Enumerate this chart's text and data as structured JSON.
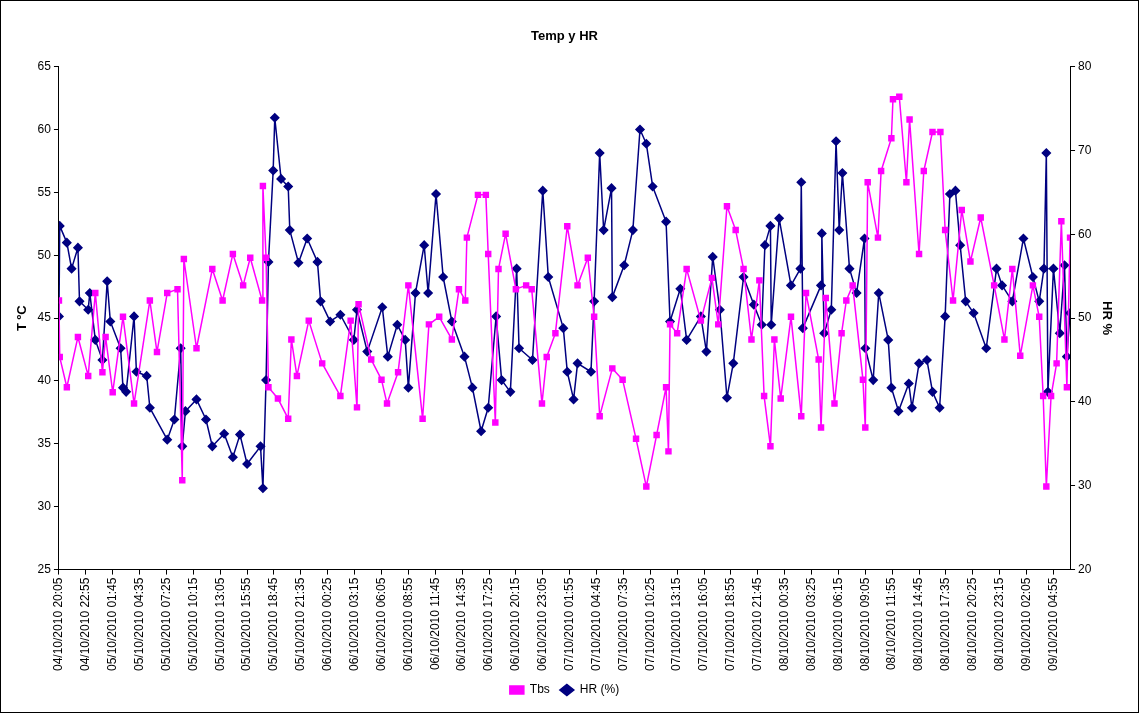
{
  "chart_data": {
    "type": "line",
    "title": "Temp y HR",
    "ylabel": "T ºC",
    "y2label": "HR %",
    "ylim": [
      25,
      65
    ],
    "yticks": [
      25,
      30,
      35,
      40,
      45,
      50,
      55,
      60,
      65
    ],
    "y2lim": [
      20,
      80
    ],
    "y2ticks": [
      20,
      30,
      40,
      50,
      60,
      70,
      80
    ],
    "xlim": [
      "2010-10-04T20:05",
      "2010-10-09T06:40"
    ],
    "xticks": [
      {
        "value": "2010-10-04T20:05",
        "label": "04/10/2010 20:05"
      },
      {
        "value": "2010-10-04T22:55",
        "label": "04/10/2010 22:55"
      },
      {
        "value": "2010-10-05T01:45",
        "label": "05/10/2010 01:45"
      },
      {
        "value": "2010-10-05T04:35",
        "label": "05/10/2010 04:35"
      },
      {
        "value": "2010-10-05T07:25",
        "label": "05/10/2010 07:25"
      },
      {
        "value": "2010-10-05T10:15",
        "label": "05/10/2010 10:15"
      },
      {
        "value": "2010-10-05T13:05",
        "label": "05/10/2010 13:05"
      },
      {
        "value": "2010-10-05T15:55",
        "label": "05/10/2010 15:55"
      },
      {
        "value": "2010-10-05T18:45",
        "label": "05/10/2010 18:45"
      },
      {
        "value": "2010-10-05T21:35",
        "label": "05/10/2010 21:35"
      },
      {
        "value": "2010-10-06T00:25",
        "label": "06/10/2010 00:25"
      },
      {
        "value": "2010-10-06T03:15",
        "label": "06/10/2010 03:15"
      },
      {
        "value": "2010-10-06T06:05",
        "label": "06/10/2010 06:05"
      },
      {
        "value": "2010-10-06T08:55",
        "label": "06/10/2010 08:55"
      },
      {
        "value": "2010-10-06T11:45",
        "label": "06/10/2010 11:45"
      },
      {
        "value": "2010-10-06T14:35",
        "label": "06/10/2010 14:35"
      },
      {
        "value": "2010-10-06T17:25",
        "label": "06/10/2010 17:25"
      },
      {
        "value": "2010-10-06T20:15",
        "label": "06/10/2010 20:15"
      },
      {
        "value": "2010-10-06T23:05",
        "label": "06/10/2010 23:05"
      },
      {
        "value": "2010-10-07T01:55",
        "label": "07/10/2010 01:55"
      },
      {
        "value": "2010-10-07T04:45",
        "label": "07/10/2010 04:45"
      },
      {
        "value": "2010-10-07T07:35",
        "label": "07/10/2010 07:35"
      },
      {
        "value": "2010-10-07T10:25",
        "label": "07/10/2010 10:25"
      },
      {
        "value": "2010-10-07T13:15",
        "label": "07/10/2010 13:15"
      },
      {
        "value": "2010-10-07T16:05",
        "label": "07/10/2010 16:05"
      },
      {
        "value": "2010-10-07T18:55",
        "label": "07/10/2010 18:55"
      },
      {
        "value": "2010-10-07T21:45",
        "label": "07/10/2010 21:45"
      },
      {
        "value": "2010-10-08T00:35",
        "label": "08/10/2010 00:35"
      },
      {
        "value": "2010-10-08T03:25",
        "label": "08/10/2010 03:25"
      },
      {
        "value": "2010-10-08T06:15",
        "label": "08/10/2010 06:15"
      },
      {
        "value": "2010-10-08T09:05",
        "label": "08/10/2010 09:05"
      },
      {
        "value": "2010-10-08T11:55",
        "label": "08/10/2010 11:55"
      },
      {
        "value": "2010-10-08T14:45",
        "label": "08/10/2010 14:45"
      },
      {
        "value": "2010-10-08T17:35",
        "label": "08/10/2010 17:35"
      },
      {
        "value": "2010-10-08T20:25",
        "label": "08/10/2010 20:25"
      },
      {
        "value": "2010-10-08T23:15",
        "label": "08/10/2010 23:15"
      },
      {
        "value": "2010-10-09T02:05",
        "label": "09/10/2010 02:05"
      },
      {
        "value": "2010-10-09T04:55",
        "label": "09/10/2010 04:55"
      }
    ],
    "legend": "bottom",
    "line_style": "solid",
    "series": [
      {
        "name": "Tbs",
        "color": "#ff00ff",
        "marker": "square",
        "x": [
          "2010-10-04T20:05",
          "2010-10-04T20:10",
          "2010-10-04T20:55",
          "2010-10-04T22:05",
          "2010-10-04T23:10",
          "2010-10-04T23:55",
          "2010-10-05T00:40",
          "2010-10-05T01:00",
          "2010-10-05T01:45",
          "2010-10-05T02:50",
          "2010-10-05T04:00",
          "2010-10-05T05:40",
          "2010-10-05T06:25",
          "2010-10-05T07:30",
          "2010-10-05T08:35",
          "2010-10-05T09:05",
          "2010-10-05T09:15",
          "2010-10-05T10:35",
          "2010-10-05T12:15",
          "2010-10-05T13:20",
          "2010-10-05T14:25",
          "2010-10-05T15:30",
          "2010-10-05T16:15",
          "2010-10-05T17:30",
          "2010-10-05T17:35",
          "2010-10-05T17:55",
          "2010-10-05T18:10",
          "2010-10-05T19:10",
          "2010-10-05T20:15",
          "2010-10-05T20:35",
          "2010-10-05T21:10",
          "2010-10-05T22:25",
          "2010-10-05T23:50",
          "2010-10-06T01:45",
          "2010-10-06T02:50",
          "2010-10-06T03:30",
          "2010-10-06T03:40",
          "2010-10-06T05:00",
          "2010-10-06T06:05",
          "2010-10-06T06:40",
          "2010-10-06T07:50",
          "2010-10-06T08:55",
          "2010-10-06T10:25",
          "2010-10-06T11:05",
          "2010-10-06T12:10",
          "2010-10-06T13:30",
          "2010-10-06T14:15",
          "2010-10-06T14:55",
          "2010-10-06T15:05",
          "2010-10-06T16:15",
          "2010-10-06T17:05",
          "2010-10-06T17:20",
          "2010-10-06T18:05",
          "2010-10-06T18:25",
          "2010-10-06T19:10",
          "2010-10-06T20:15",
          "2010-10-06T21:20",
          "2010-10-06T21:55",
          "2010-10-06T23:00",
          "2010-10-06T23:30",
          "2010-10-07T00:25",
          "2010-10-07T01:40",
          "2010-10-07T02:45",
          "2010-10-07T03:50",
          "2010-10-07T04:30",
          "2010-10-07T05:05",
          "2010-10-07T06:25",
          "2010-10-07T07:30",
          "2010-10-07T08:55",
          "2010-10-07T10:00",
          "2010-10-07T11:05",
          "2010-10-07T12:05",
          "2010-10-07T12:20",
          "2010-10-07T12:30",
          "2010-10-07T13:15",
          "2010-10-07T14:15",
          "2010-10-07T15:45",
          "2010-10-07T16:55",
          "2010-10-07T17:35",
          "2010-10-07T18:30",
          "2010-10-07T19:25",
          "2010-10-07T20:15",
          "2010-10-07T21:05",
          "2010-10-07T21:55",
          "2010-10-07T22:25",
          "2010-10-07T23:05",
          "2010-10-07T23:30",
          "2010-10-08T00:10",
          "2010-10-08T01:15",
          "2010-10-08T02:20",
          "2010-10-08T02:50",
          "2010-10-08T04:10",
          "2010-10-08T04:25",
          "2010-10-08T04:55",
          "2010-10-08T05:50",
          "2010-10-08T06:35",
          "2010-10-08T07:05",
          "2010-10-08T07:45",
          "2010-10-08T08:50",
          "2010-10-08T09:05",
          "2010-10-08T09:20",
          "2010-10-08T10:25",
          "2010-10-08T10:45",
          "2010-10-08T11:50",
          "2010-10-08T12:00",
          "2010-10-08T12:40",
          "2010-10-08T13:25",
          "2010-10-08T13:45",
          "2010-10-08T14:45",
          "2010-10-08T15:15",
          "2010-10-08T16:10",
          "2010-10-08T17:00",
          "2010-10-08T17:30",
          "2010-10-08T18:20",
          "2010-10-08T19:15",
          "2010-10-08T20:10",
          "2010-10-08T21:15",
          "2010-10-08T22:40",
          "2010-10-08T23:45",
          "2010-10-09T00:35",
          "2010-10-09T01:25",
          "2010-10-09T02:45",
          "2010-10-09T03:25",
          "2010-10-09T03:50",
          "2010-10-09T04:10",
          "2010-10-09T04:40",
          "2010-10-09T05:15",
          "2010-10-09T05:45",
          "2010-10-09T06:20",
          "2010-10-09T06:40"
        ],
        "values": [
          46.4,
          41.9,
          39.5,
          43.5,
          40.4,
          47,
          40.7,
          43.5,
          39.1,
          45.1,
          38.2,
          46.4,
          42.3,
          47,
          47.3,
          32.1,
          49.7,
          42.6,
          48.9,
          46.4,
          50.1,
          47.6,
          49.8,
          46.4,
          55.5,
          49.8,
          39.5,
          38.6,
          37,
          43.3,
          40.4,
          44.8,
          41.4,
          38.8,
          44.8,
          37.9,
          46.1,
          41.7,
          40.1,
          38.2,
          40.7,
          47.6,
          37,
          44.5,
          45.1,
          43.3,
          47.3,
          46.4,
          51.4,
          54.8,
          54.8,
          50.1,
          36.7,
          48.9,
          51.7,
          47.3,
          47.6,
          47.3,
          38.2,
          41.9,
          43.8,
          52.3,
          47.6,
          49.8,
          45.1,
          37.2,
          41,
          40.1,
          35.4,
          31.6,
          35.7,
          39.5,
          34.4,
          44.5,
          43.8,
          48.9,
          44.8,
          48.2,
          44.5,
          53.9,
          52,
          48.9,
          43.3,
          48,
          38.8,
          34.8,
          43.3,
          38.6,
          45.1,
          37.2,
          47,
          41.7,
          36.3,
          46.6,
          38.2,
          43.8,
          46.4,
          47.6,
          40.1,
          36.3,
          55.8,
          51.4,
          56.7,
          59.3,
          62.4,
          62.6,
          55.8,
          60.8,
          50.1,
          56.7,
          59.8,
          59.8,
          52,
          46.4,
          53.6,
          49.5,
          53,
          47.6,
          43.3,
          48.9,
          42,
          47.6,
          45.1,
          38.8,
          31.6,
          38.8,
          41.4,
          52.7,
          39.5,
          51.4
        ]
      },
      {
        "name": "HR (%)",
        "color": "#000080",
        "marker": "diamond",
        "axis": "y2",
        "x": [
          "2010-10-04T20:05",
          "2010-10-04T20:10",
          "2010-10-04T20:55",
          "2010-10-04T21:25",
          "2010-10-04T22:05",
          "2010-10-04T22:15",
          "2010-10-04T23:10",
          "2010-10-04T23:20",
          "2010-10-04T23:55",
          "2010-10-05T00:40",
          "2010-10-05T01:10",
          "2010-10-05T01:30",
          "2010-10-05T02:35",
          "2010-10-05T02:50",
          "2010-10-05T03:10",
          "2010-10-05T04:00",
          "2010-10-05T04:15",
          "2010-10-05T05:20",
          "2010-10-05T05:40",
          "2010-10-05T07:30",
          "2010-10-05T08:15",
          "2010-10-05T08:55",
          "2010-10-05T09:05",
          "2010-10-05T09:25",
          "2010-10-05T10:35",
          "2010-10-05T11:35",
          "2010-10-05T12:15",
          "2010-10-05T13:30",
          "2010-10-05T14:25",
          "2010-10-05T15:10",
          "2010-10-05T15:55",
          "2010-10-05T17:20",
          "2010-10-05T17:35",
          "2010-10-05T17:55",
          "2010-10-05T18:10",
          "2010-10-05T18:40",
          "2010-10-05T18:50",
          "2010-10-05T19:30",
          "2010-10-05T20:15",
          "2010-10-05T20:25",
          "2010-10-05T21:20",
          "2010-10-05T22:15",
          "2010-10-05T23:20",
          "2010-10-05T23:40",
          "2010-10-06T00:40",
          "2010-10-06T01:45",
          "2010-10-06T03:10",
          "2010-10-06T03:30",
          "2010-10-06T04:35",
          "2010-10-06T06:10",
          "2010-10-06T06:45",
          "2010-10-06T07:45",
          "2010-10-06T08:35",
          "2010-10-06T08:55",
          "2010-10-06T09:40",
          "2010-10-06T10:35",
          "2010-10-06T11:00",
          "2010-10-06T11:50",
          "2010-10-06T12:35",
          "2010-10-06T13:30",
          "2010-10-06T14:50",
          "2010-10-06T15:40",
          "2010-10-06T16:35",
          "2010-10-06T17:20",
          "2010-10-06T18:10",
          "2010-10-06T18:45",
          "2010-10-06T19:40",
          "2010-10-06T20:20",
          "2010-10-06T20:35",
          "2010-10-06T22:00",
          "2010-10-06T23:05",
          "2010-10-06T23:40",
          "2010-10-07T01:15",
          "2010-10-07T01:40",
          "2010-10-07T02:20",
          "2010-10-07T02:45",
          "2010-10-07T04:10",
          "2010-10-07T04:30",
          "2010-10-07T05:05",
          "2010-10-07T05:30",
          "2010-10-07T06:20",
          "2010-10-07T06:25",
          "2010-10-07T07:40",
          "2010-10-07T08:35",
          "2010-10-07T09:20",
          "2010-10-07T10:00",
          "2010-10-07T10:40",
          "2010-10-07T12:05",
          "2010-10-07T12:30",
          "2010-10-07T13:35",
          "2010-10-07T14:15",
          "2010-10-07T15:45",
          "2010-10-07T16:20",
          "2010-10-07T17:00",
          "2010-10-07T17:45",
          "2010-10-07T18:30",
          "2010-10-07T19:10",
          "2010-10-07T20:15",
          "2010-10-07T21:20",
          "2010-10-07T22:10",
          "2010-10-07T22:30",
          "2010-10-07T23:05",
          "2010-10-07T23:10",
          "2010-10-08T00:00",
          "2010-10-08T01:15",
          "2010-10-08T02:15",
          "2010-10-08T02:20",
          "2010-10-08T02:30",
          "2010-10-08T04:25",
          "2010-10-08T04:30",
          "2010-10-08T04:45",
          "2010-10-08T05:30",
          "2010-10-08T06:00",
          "2010-10-08T06:20",
          "2010-10-08T06:40",
          "2010-10-08T07:25",
          "2010-10-08T08:10",
          "2010-10-08T09:00",
          "2010-10-08T09:05",
          "2010-10-08T09:55",
          "2010-10-08T10:30",
          "2010-10-08T11:30",
          "2010-10-08T11:50",
          "2010-10-08T12:35",
          "2010-10-08T13:40",
          "2010-10-08T14:00",
          "2010-10-08T14:45",
          "2010-10-08T15:35",
          "2010-10-08T16:10",
          "2010-10-08T16:55",
          "2010-10-08T17:30",
          "2010-10-08T18:00",
          "2010-10-08T18:35",
          "2010-10-08T19:05",
          "2010-10-08T19:40",
          "2010-10-08T20:30",
          "2010-10-08T21:50",
          "2010-10-08T22:55",
          "2010-10-08T23:30",
          "2010-10-09T00:35",
          "2010-10-09T01:45",
          "2010-10-09T02:45",
          "2010-10-09T03:25",
          "2010-10-09T03:55",
          "2010-10-09T04:10",
          "2010-10-09T04:20",
          "2010-10-09T04:55",
          "2010-10-09T05:35",
          "2010-10-09T06:05",
          "2010-10-09T06:20",
          "2010-10-09T06:40"
        ],
        "values": [
          50.2,
          61,
          59,
          55.9,
          58.4,
          52,
          51,
          53,
          47.4,
          45,
          54.4,
          49.6,
          46.4,
          41.7,
          41.2,
          50.2,
          43.6,
          43.1,
          39.3,
          35.5,
          37.9,
          46.4,
          34.7,
          38.9,
          40.3,
          37.9,
          34.7,
          36.2,
          33.4,
          36.1,
          32.6,
          34.7,
          29.7,
          42.6,
          56.7,
          67.6,
          73.9,
          66.6,
          65.7,
          60.5,
          56.6,
          59.5,
          56.7,
          52,
          49.6,
          50.4,
          47.4,
          51,
          46,
          51.3,
          45.4,
          49.2,
          47.4,
          41.7,
          53,
          58.7,
          53,
          64.8,
          54.9,
          49.6,
          45.4,
          41.7,
          36.5,
          39.3,
          50.2,
          42.6,
          41.2,
          55.9,
          46.4,
          45,
          65.2,
          54.9,
          48.8,
          43.6,
          40.3,
          44.6,
          43.6,
          52,
          69.7,
          60.5,
          65.5,
          52.5,
          56.3,
          60.5,
          72.5,
          70.8,
          65.7,
          61.5,
          49.6,
          53.5,
          47.4,
          50.2,
          46,
          57.3,
          51,
          40.5,
          44.6,
          54.9,
          51.6,
          49.2,
          58.7,
          61,
          49.2,
          61.9,
          53.9,
          55.9,
          66.2,
          48.8,
          53.9,
          60.1,
          48.2,
          51,
          71.1,
          60.5,
          67.3,
          55.9,
          53,
          59.5,
          46.4,
          42.6,
          53,
          47.4,
          41.7,
          38.9,
          42.2,
          39.3,
          44.6,
          45,
          41.2,
          39.3,
          50.2,
          64.8,
          65.2,
          58.7,
          52,
          50.6,
          46.4,
          55.9,
          53.9,
          52,
          59.5,
          54.9,
          52,
          55.9,
          69.7,
          41.2,
          55.9,
          48.2,
          56.3,
          45.4,
          50.6
        ]
      }
    ]
  }
}
